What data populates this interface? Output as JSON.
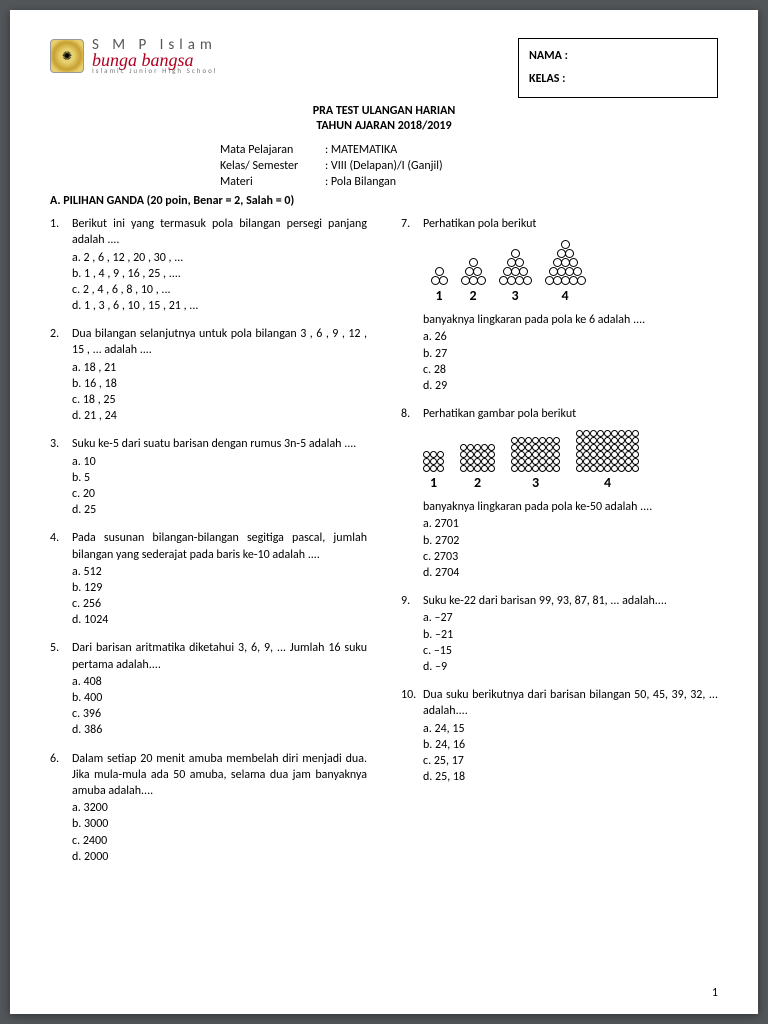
{
  "header": {
    "school_line1": "S M P Islam",
    "school_line2": "bunga bangsa",
    "school_line3": "Islamic Junior High School",
    "nama_label": "NAMA :",
    "kelas_label": "KELAS :"
  },
  "title": {
    "line1": "PRA TEST ULANGAN HARIAN",
    "line2": "TAHUN AJARAN 2018/2019"
  },
  "meta": {
    "k1": "Mata Pelajaran",
    "v1": ": MATEMATIKA",
    "k2": "Kelas/ Semester",
    "v2": ": VIII (Delapan)/I (Ganjil)",
    "k3": "Materi",
    "v3": ": Pola Bilangan"
  },
  "section_a": "A. PILIHAN GANDA (20 poin, Benar = 2, Salah = 0)",
  "q1": {
    "num": "1.",
    "text": "Berikut ini yang termasuk pola bilangan persegi panjang adalah ....",
    "a": "a. 2 , 6 , 12 , 20 , 30 , ...",
    "b": "b. 1 , 4 , 9 , 16 , 25 , ....",
    "c": "c. 2 , 4 , 6 , 8 , 10 , ...",
    "d": "d. 1 , 3 , 6 , 10 , 15 , 21 , ..."
  },
  "q2": {
    "num": "2.",
    "text": "Dua bilangan selanjutnya untuk pola bilangan 3 , 6 , 9 , 12 , 15 , ... adalah ....",
    "a": "a. 18 , 21",
    "b": "b. 16 , 18",
    "c": "c. 18 , 25",
    "d": "d. 21 , 24"
  },
  "q3": {
    "num": "3.",
    "text": "Suku ke-5 dari suatu barisan dengan rumus 3n-5 adalah ....",
    "a": "a. 10",
    "b": "b. 5",
    "c": "c. 20",
    "d": "d. 25"
  },
  "q4": {
    "num": "4.",
    "text": "Pada susunan bilangan-bilangan segitiga pascal, jumlah bilangan yang sederajat pada baris ke-10 adalah ....",
    "a": "a. 512",
    "b": "b. 129",
    "c": "c. 256",
    "d": "d. 1024"
  },
  "q5": {
    "num": "5.",
    "text": "Dari barisan aritmatika diketahui 3, 6, 9, ... Jumlah 16 suku pertama adalah....",
    "a": "a. 408",
    "b": "b. 400",
    "c": "c. 396",
    "d": "d. 386"
  },
  "q6": {
    "num": "6.",
    "text": "Dalam setiap 20 menit amuba membelah diri menjadi dua. Jika mula-mula ada 50 amuba, selama dua jam banyaknya amuba adalah....",
    "a": "a. 3200",
    "b": "b. 3000",
    "c": "c. 2400",
    "d": "d. 2000"
  },
  "q7": {
    "num": "7.",
    "text": "Perhatikan pola berikut",
    "sub": "banyaknya lingkaran pada pola ke 6 adalah ....",
    "a": "a. 26",
    "b": "b. 27",
    "c": "c. 28",
    "d": "d. 29",
    "pyramids": [
      {
        "rows": [
          2,
          1
        ],
        "label": "1"
      },
      {
        "rows": [
          3,
          2,
          1
        ],
        "label": "2"
      },
      {
        "rows": [
          4,
          3,
          2,
          1
        ],
        "label": "3"
      },
      {
        "rows": [
          5,
          4,
          3,
          2,
          1
        ],
        "label": "4"
      }
    ]
  },
  "q8": {
    "num": "8.",
    "text": "Perhatikan gambar pola berikut",
    "sub": "banyaknya lingkaran pada pola ke-50 adalah ....",
    "a": "a.   2701",
    "b": "b.   2702",
    "c": "c.   2703",
    "d": "d.   2704",
    "grids": [
      {
        "cols": 3,
        "rows": 3,
        "label": "1"
      },
      {
        "cols": 5,
        "rows": 4,
        "label": "2"
      },
      {
        "cols": 7,
        "rows": 5,
        "label": "3"
      },
      {
        "cols": 9,
        "rows": 6,
        "label": "4"
      }
    ]
  },
  "q9": {
    "num": "9.",
    "text": "Suku ke-22 dari barisan 99, 93, 87, 81, ... adalah....",
    "a": "a. –27",
    "b": "b. –21",
    "c": "c. –15",
    "d": "d. –9"
  },
  "q10": {
    "num": "10.",
    "text": "Dua suku berikutnya dari barisan bilangan 50, 45, 39, 32, ... adalah....",
    "a": "a. 24, 15",
    "b": "b. 24, 16",
    "c": "c. 25, 17",
    "d": "d. 25, 18"
  },
  "page_number": "1"
}
